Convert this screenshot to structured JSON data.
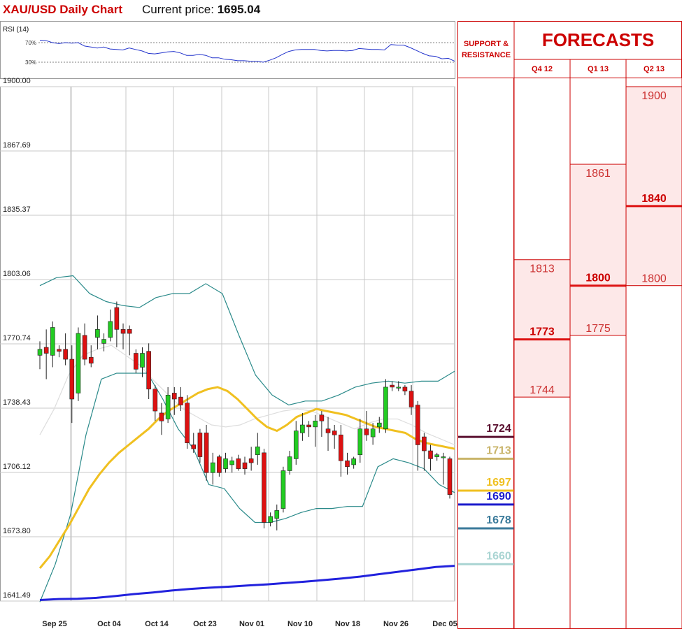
{
  "header": {
    "title": "XAU/USD Daily Chart",
    "price_label": "Current price:",
    "price_value": "1695.04"
  },
  "colors": {
    "bull": "#22cc22",
    "bear": "#dd1111",
    "sma_fast": "#f0c020",
    "sma_slow": "#2222dd",
    "bollinger": "#2a8a8a",
    "rsi": "#2233cc",
    "forecast": "#dd1111",
    "forecast_fill": "#fde8e8"
  },
  "chart_data": {
    "type": "candlestick",
    "title": "XAU/USD Daily Chart",
    "current_price": 1695.04,
    "ylim": [
      1641.49,
      1900.0
    ],
    "y_ticks": [
      "1900.00",
      "1867.69",
      "1835.37",
      "1803.06",
      "1770.74",
      "1738.43",
      "1706.12",
      "1673.80",
      "1641.49"
    ],
    "x_ticks": [
      "Sep 25",
      "Oct 04",
      "Oct 14",
      "Oct 23",
      "Nov 01",
      "Nov 10",
      "Nov 18",
      "Nov 26",
      "Dec 05"
    ],
    "grid": true,
    "candles": [
      {
        "o": 1765,
        "h": 1772,
        "l": 1758,
        "c": 1768
      },
      {
        "o": 1769,
        "h": 1778,
        "l": 1753,
        "c": 1766
      },
      {
        "o": 1765,
        "h": 1782,
        "l": 1759,
        "c": 1779
      },
      {
        "o": 1768,
        "h": 1770,
        "l": 1764,
        "c": 1767
      },
      {
        "o": 1768,
        "h": 1776,
        "l": 1760,
        "c": 1763
      },
      {
        "o": 1763,
        "h": 1770,
        "l": 1731,
        "c": 1743
      },
      {
        "o": 1746,
        "h": 1779,
        "l": 1742,
        "c": 1776
      },
      {
        "o": 1775,
        "h": 1781,
        "l": 1760,
        "c": 1763
      },
      {
        "o": 1764,
        "h": 1770,
        "l": 1759,
        "c": 1761
      },
      {
        "o": 1774,
        "h": 1785,
        "l": 1768,
        "c": 1778
      },
      {
        "o": 1771,
        "h": 1776,
        "l": 1767,
        "c": 1773
      },
      {
        "o": 1774,
        "h": 1788,
        "l": 1772,
        "c": 1782
      },
      {
        "o": 1789,
        "h": 1792,
        "l": 1769,
        "c": 1778
      },
      {
        "o": 1778,
        "h": 1781,
        "l": 1768,
        "c": 1776
      },
      {
        "o": 1778,
        "h": 1780,
        "l": 1765,
        "c": 1776
      },
      {
        "o": 1766,
        "h": 1768,
        "l": 1756,
        "c": 1758
      },
      {
        "o": 1759,
        "h": 1769,
        "l": 1754,
        "c": 1766
      },
      {
        "o": 1767,
        "h": 1771,
        "l": 1743,
        "c": 1748
      },
      {
        "o": 1748,
        "h": 1750,
        "l": 1732,
        "c": 1737
      },
      {
        "o": 1736,
        "h": 1741,
        "l": 1725,
        "c": 1732
      },
      {
        "o": 1733,
        "h": 1749,
        "l": 1731,
        "c": 1745
      },
      {
        "o": 1746,
        "h": 1749,
        "l": 1735,
        "c": 1743
      },
      {
        "o": 1744,
        "h": 1749,
        "l": 1737,
        "c": 1740
      },
      {
        "o": 1741,
        "h": 1745,
        "l": 1718,
        "c": 1721
      },
      {
        "o": 1720,
        "h": 1726,
        "l": 1716,
        "c": 1718
      },
      {
        "o": 1726,
        "h": 1728,
        "l": 1711,
        "c": 1714
      },
      {
        "o": 1726,
        "h": 1730,
        "l": 1702,
        "c": 1706
      },
      {
        "o": 1706,
        "h": 1716,
        "l": 1700,
        "c": 1711
      },
      {
        "o": 1714,
        "h": 1715,
        "l": 1704,
        "c": 1706
      },
      {
        "o": 1708,
        "h": 1716,
        "l": 1706,
        "c": 1713
      },
      {
        "o": 1710,
        "h": 1714,
        "l": 1706,
        "c": 1712
      },
      {
        "o": 1713,
        "h": 1715,
        "l": 1707,
        "c": 1708
      },
      {
        "o": 1711,
        "h": 1714,
        "l": 1705,
        "c": 1708
      },
      {
        "o": 1713,
        "h": 1719,
        "l": 1707,
        "c": 1711
      },
      {
        "o": 1715,
        "h": 1726,
        "l": 1710,
        "c": 1719
      },
      {
        "o": 1716,
        "h": 1718,
        "l": 1678,
        "c": 1681
      },
      {
        "o": 1681,
        "h": 1686,
        "l": 1679,
        "c": 1684
      },
      {
        "o": 1683,
        "h": 1690,
        "l": 1677,
        "c": 1687
      },
      {
        "o": 1688,
        "h": 1709,
        "l": 1686,
        "c": 1707
      },
      {
        "o": 1707,
        "h": 1717,
        "l": 1705,
        "c": 1714
      },
      {
        "o": 1713,
        "h": 1732,
        "l": 1710,
        "c": 1727
      },
      {
        "o": 1726,
        "h": 1736,
        "l": 1722,
        "c": 1730
      },
      {
        "o": 1730,
        "h": 1732,
        "l": 1724,
        "c": 1729
      },
      {
        "o": 1729,
        "h": 1735,
        "l": 1719,
        "c": 1732
      },
      {
        "o": 1735,
        "h": 1737,
        "l": 1724,
        "c": 1732
      },
      {
        "o": 1728,
        "h": 1734,
        "l": 1717,
        "c": 1726
      },
      {
        "o": 1727,
        "h": 1730,
        "l": 1718,
        "c": 1725
      },
      {
        "o": 1725,
        "h": 1730,
        "l": 1704,
        "c": 1712
      },
      {
        "o": 1712,
        "h": 1716,
        "l": 1705,
        "c": 1709
      },
      {
        "o": 1710,
        "h": 1714,
        "l": 1708,
        "c": 1713
      },
      {
        "o": 1715,
        "h": 1733,
        "l": 1711,
        "c": 1728
      },
      {
        "o": 1728,
        "h": 1737,
        "l": 1722,
        "c": 1725
      },
      {
        "o": 1724,
        "h": 1731,
        "l": 1720,
        "c": 1728
      },
      {
        "o": 1729,
        "h": 1734,
        "l": 1726,
        "c": 1731
      },
      {
        "o": 1728,
        "h": 1753,
        "l": 1726,
        "c": 1749
      },
      {
        "o": 1750,
        "h": 1752,
        "l": 1747,
        "c": 1749
      },
      {
        "o": 1749,
        "h": 1752,
        "l": 1747,
        "c": 1749
      },
      {
        "o": 1749,
        "h": 1750,
        "l": 1745,
        "c": 1747
      },
      {
        "o": 1747,
        "h": 1750,
        "l": 1735,
        "c": 1739
      },
      {
        "o": 1740,
        "h": 1742,
        "l": 1707,
        "c": 1720
      },
      {
        "o": 1724,
        "h": 1726,
        "l": 1707,
        "c": 1717
      },
      {
        "o": 1717,
        "h": 1720,
        "l": 1707,
        "c": 1713
      },
      {
        "o": 1714,
        "h": 1716,
        "l": 1712,
        "c": 1715
      },
      {
        "o": 1714,
        "h": 1716,
        "l": 1700,
        "c": 1714
      },
      {
        "o": 1713,
        "h": 1714,
        "l": 1693,
        "c": 1695
      }
    ],
    "sma_fast": [
      1658,
      1664,
      1672,
      1680,
      1689,
      1698,
      1705,
      1711,
      1716,
      1720,
      1724,
      1728,
      1733,
      1737,
      1740,
      1743,
      1746,
      1748,
      1749,
      1747,
      1743,
      1738,
      1733,
      1729,
      1727,
      1730,
      1734,
      1736,
      1738,
      1737,
      1736,
      1735,
      1733,
      1731,
      1729,
      1728,
      1727,
      1726,
      1723,
      1721,
      1720,
      1719,
      1718
    ],
    "sma_slow": [
      1642,
      1642.5,
      1642.6,
      1643.1,
      1644,
      1645,
      1645.8,
      1646.8,
      1647.6,
      1648.2,
      1648.7,
      1649.3,
      1649.8,
      1650.5,
      1651.2,
      1652,
      1652.8,
      1653.8,
      1655,
      1656.2,
      1657.4,
      1658.6,
      1659.2
    ],
    "bb_upper": [
      1800,
      1804,
      1805,
      1796,
      1792,
      1790,
      1789,
      1794,
      1796,
      1796,
      1801,
      1796,
      1775,
      1755,
      1745,
      1740,
      1742,
      1742,
      1745,
      1749,
      1751,
      1752,
      1751,
      1752,
      1752,
      1757
    ],
    "bb_mid": [
      1725,
      1738,
      1755,
      1765,
      1768,
      1770,
      1765,
      1760,
      1752,
      1745,
      1738,
      1734,
      1730,
      1729,
      1730,
      1733,
      1735,
      1737,
      1738,
      1737,
      1734,
      1731,
      1728,
      1731,
      1733,
      1733,
      1730,
      1726,
      1723,
      1720
    ],
    "bb_lower": [
      1641,
      1660,
      1685,
      1725,
      1753,
      1756,
      1756,
      1756,
      1743,
      1728,
      1718,
      1700,
      1698,
      1688,
      1681,
      1681,
      1683,
      1686,
      1688,
      1688,
      1689,
      1689,
      1709,
      1713,
      1711,
      1708,
      1700,
      1696
    ],
    "rsi": {
      "label": "RSI (14)",
      "levels": [
        "70%",
        "30%"
      ],
      "values": [
        75,
        74,
        70,
        68,
        70,
        69,
        70,
        63,
        61,
        59,
        61,
        57,
        56,
        55,
        59,
        56,
        53,
        48,
        47,
        49,
        51,
        52,
        49,
        44,
        44,
        46,
        44,
        39,
        39,
        36,
        35,
        33,
        33,
        32,
        32,
        30,
        34,
        39,
        46,
        52,
        55,
        56,
        56,
        56,
        54,
        53,
        54,
        54,
        53,
        54,
        58,
        57,
        56,
        56,
        55,
        66,
        65,
        65,
        60,
        54,
        48,
        43,
        42,
        37,
        38,
        32
      ]
    }
  },
  "support_resistance": {
    "header_line1": "SUPPORT &",
    "header_line2": "RESISTANCE",
    "levels": [
      {
        "label": "1724",
        "value": 1724,
        "color": "#5a1030"
      },
      {
        "label": "1713",
        "value": 1713,
        "color": "#c9b46a"
      },
      {
        "label": "1697",
        "value": 1697,
        "color": "#f0c020"
      },
      {
        "label": "1690",
        "value": 1690,
        "color": "#1a1acc"
      },
      {
        "label": "1678",
        "value": 1678,
        "color": "#3a7a9a"
      },
      {
        "label": "1660",
        "value": 1660,
        "color": "#a9d4d2"
      }
    ]
  },
  "forecasts": {
    "title": "FORECASTS",
    "columns": [
      {
        "label": "Q4 12",
        "high_label": "1813",
        "high": 1813,
        "mid_label": "1773",
        "mid": 1773,
        "low_label": "1744",
        "low": 1744
      },
      {
        "label": "Q1 13",
        "high_label": "1861",
        "high": 1861,
        "mid_label": "1800",
        "mid": 1800,
        "low_label": "1775",
        "low": 1775
      },
      {
        "label": "Q2 13",
        "high_label": "1900",
        "high": 1900,
        "mid_label": "1840",
        "mid": 1840,
        "low_label": "1800",
        "low": 1800
      }
    ]
  }
}
